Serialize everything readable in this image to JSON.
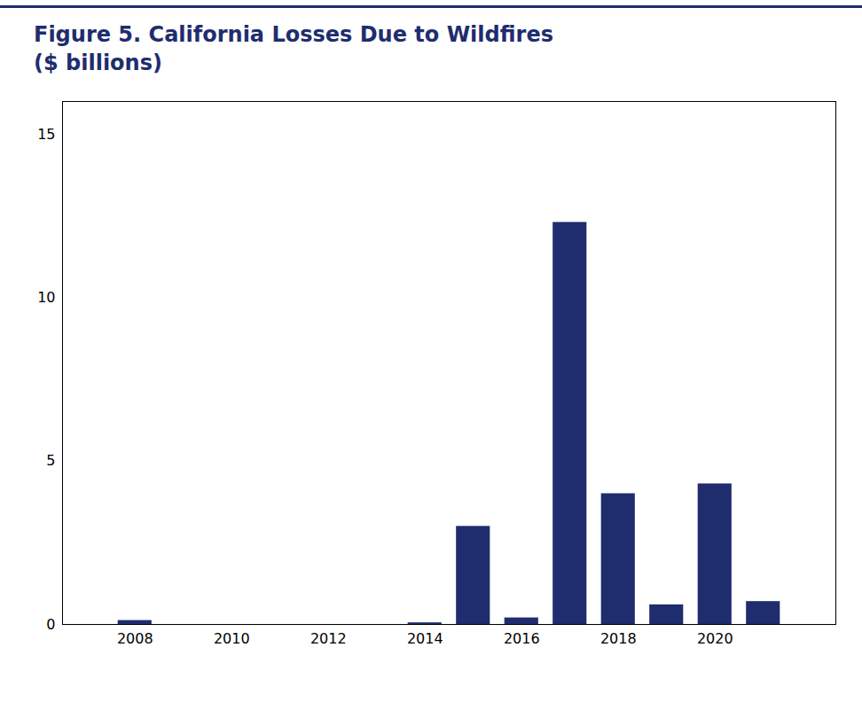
{
  "chart_data": {
    "type": "bar",
    "title": "Figure 5. California Losses Due to Wildfires",
    "subtitle": "($ billions)",
    "x": [
      2008,
      2009,
      2010,
      2011,
      2012,
      2013,
      2014,
      2015,
      2016,
      2017,
      2018,
      2019,
      2020,
      2021
    ],
    "values": [
      0.12,
      0.0,
      0.0,
      0.0,
      0.0,
      0.0,
      0.05,
      3.0,
      0.2,
      12.3,
      4.0,
      0.6,
      4.3,
      0.7
    ],
    "color": "#1f2d6e",
    "xlim": [
      2006.5,
      2022.5
    ],
    "xticks": [
      2008,
      2010,
      2012,
      2014,
      2016,
      2018,
      2020
    ],
    "ylim": [
      0,
      16
    ],
    "yticks": [
      0,
      5,
      10,
      15
    ],
    "grid": false
  }
}
